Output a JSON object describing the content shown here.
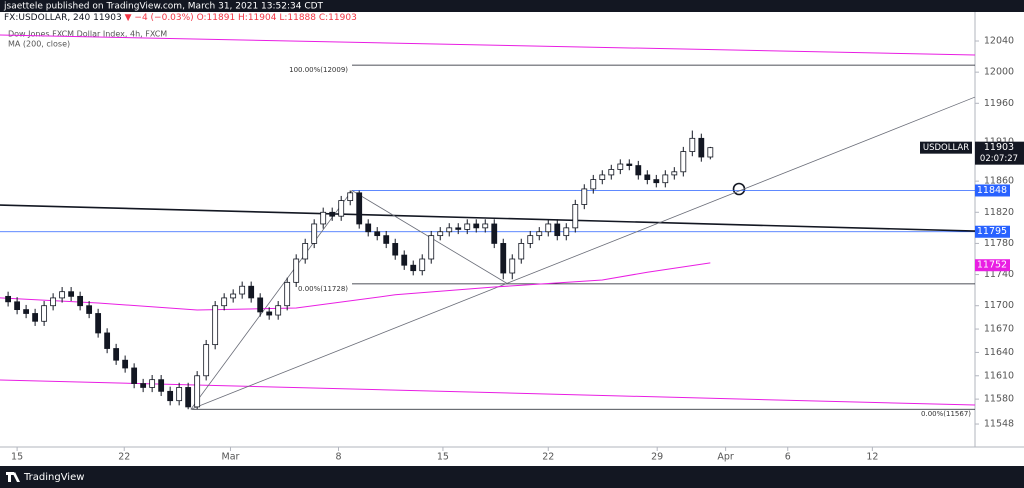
{
  "header": {
    "publisher": "jsaettele published on TradingView.com, March 31, 2021 13:52:34 CDT",
    "symbol": "FX:USDOLLAR, 240",
    "last": "11903",
    "change": "▼ −4 (−0.03%)",
    "ohlc": "O:11891 H:11904 L:11888 C:11903",
    "series_title": "Dow Jones FXCM Dollar Index, 4h, FXCM",
    "indicator": "MA (200, close)",
    "footer": "TradingView"
  },
  "chart_data": {
    "type": "candlestick",
    "up_color": "#ffffff",
    "down_color": "#131722",
    "open": [
      11712,
      11705,
      11695,
      11690,
      11680,
      11700,
      11710,
      11718,
      11712,
      11700,
      11690,
      11665,
      11645,
      11630,
      11620,
      11600,
      11595,
      11605,
      11590,
      11578,
      11595,
      11570,
      11610,
      11650,
      11700,
      11710,
      11715,
      11725,
      11710,
      11692,
      11688,
      11700,
      11730,
      11760,
      11780,
      11805,
      11820,
      11815,
      11835,
      11845,
      11805,
      11795,
      11790,
      11780,
      11765,
      11752,
      11745,
      11760,
      11790,
      11795,
      11800,
      11798,
      11805,
      11800,
      11805,
      11780,
      11742,
      11760,
      11780,
      11790,
      11795,
      11805,
      11790,
      11800,
      11830,
      11850,
      11862,
      11868,
      11875,
      11882,
      11880,
      11868,
      11862,
      11858,
      11868,
      11872,
      11898,
      11915,
      11891
    ],
    "high": [
      11718,
      11711,
      11701,
      11696,
      11706,
      11716,
      11724,
      11724,
      11718,
      11706,
      11696,
      11671,
      11651,
      11636,
      11626,
      11606,
      11611,
      11611,
      11596,
      11601,
      11601,
      11616,
      11656,
      11706,
      11716,
      11721,
      11731,
      11731,
      11716,
      11698,
      11706,
      11736,
      11766,
      11786,
      11811,
      11826,
      11826,
      11841,
      11848,
      11848,
      11811,
      11801,
      11796,
      11786,
      11771,
      11758,
      11766,
      11796,
      11801,
      11806,
      11806,
      11811,
      11811,
      11811,
      11811,
      11786,
      11766,
      11786,
      11796,
      11801,
      11811,
      11811,
      11806,
      11836,
      11856,
      11868,
      11874,
      11881,
      11888,
      11888,
      11886,
      11874,
      11868,
      11874,
      11878,
      11904,
      11925,
      11921,
      11904
    ],
    "low": [
      11699,
      11689,
      11684,
      11674,
      11674,
      11694,
      11704,
      11706,
      11694,
      11684,
      11659,
      11639,
      11624,
      11614,
      11594,
      11589,
      11589,
      11584,
      11572,
      11572,
      11567,
      11567,
      11604,
      11644,
      11694,
      11704,
      11709,
      11704,
      11686,
      11682,
      11682,
      11694,
      11724,
      11754,
      11774,
      11799,
      11809,
      11809,
      11829,
      11799,
      11789,
      11784,
      11774,
      11759,
      11746,
      11739,
      11739,
      11754,
      11784,
      11789,
      11792,
      11792,
      11794,
      11794,
      11774,
      11734,
      11734,
      11754,
      11774,
      11784,
      11789,
      11784,
      11784,
      11794,
      11824,
      11844,
      11856,
      11862,
      11869,
      11874,
      11862,
      11856,
      11852,
      11852,
      11862,
      11866,
      11892,
      11885,
      11888
    ],
    "close": [
      11705,
      11695,
      11690,
      11680,
      11700,
      11710,
      11718,
      11712,
      11700,
      11690,
      11665,
      11645,
      11630,
      11620,
      11600,
      11595,
      11605,
      11590,
      11578,
      11595,
      11570,
      11610,
      11650,
      11700,
      11710,
      11715,
      11725,
      11710,
      11692,
      11688,
      11700,
      11730,
      11760,
      11780,
      11805,
      11820,
      11815,
      11835,
      11845,
      11805,
      11795,
      11790,
      11780,
      11765,
      11752,
      11745,
      11760,
      11790,
      11795,
      11800,
      11798,
      11805,
      11800,
      11805,
      11780,
      11742,
      11760,
      11780,
      11790,
      11795,
      11805,
      11790,
      11800,
      11830,
      11850,
      11862,
      11868,
      11875,
      11882,
      11880,
      11868,
      11862,
      11858,
      11868,
      11872,
      11898,
      11915,
      11891,
      11903
    ],
    "xlim": [
      -0.9,
      107.4
    ],
    "xticks": [
      {
        "value": 1,
        "label": "15"
      },
      {
        "value": 12.9,
        "label": "22"
      },
      {
        "value": 24.7,
        "label": "Mar"
      },
      {
        "value": 36.7,
        "label": "8"
      },
      {
        "value": 48.3,
        "label": "15"
      },
      {
        "value": 60,
        "label": "22"
      },
      {
        "value": 72.1,
        "label": "29"
      },
      {
        "value": 79.7,
        "label": "Apr"
      },
      {
        "value": 86.6,
        "label": "6"
      },
      {
        "value": 96,
        "label": "12"
      }
    ],
    "ylim": [
      11518.5,
      12074.7
    ],
    "yticks": [
      12040,
      12000,
      11960,
      11910,
      11860,
      11820,
      11780,
      11740,
      11700,
      11670,
      11640,
      11610,
      11580,
      11548
    ],
    "ma": {
      "name": "MA (200, close)",
      "color": "#e91ee3",
      "x": [
        -0.9,
        10,
        21,
        32,
        43,
        54,
        66,
        71,
        78
      ],
      "values": [
        11710,
        11703.5,
        11694.5,
        11697,
        11714,
        11724,
        11733,
        11743,
        11755
      ]
    },
    "trendlines": [
      {
        "color": "#e91ee3",
        "width": 1,
        "x": [
          -0.9,
          107.4
        ],
        "values": [
          12047.7,
          12022
        ]
      },
      {
        "color": "#e91ee3",
        "width": 1,
        "x": [
          -0.9,
          107.4
        ],
        "values": [
          11604.6,
          11572.4
        ]
      },
      {
        "color": "#131722",
        "width": 1.6,
        "x": [
          -0.9,
          107.4
        ],
        "values": [
          11829.3,
          11795.9
        ]
      },
      {
        "color": "#6a6d78",
        "width": 0.8,
        "x": [
          20.3,
          107.4
        ],
        "values": [
          11567,
          11968
        ]
      },
      {
        "color": "#6a6d78",
        "width": 0.8,
        "x": [
          20.3,
          38.2,
          55.5
        ],
        "values": [
          11567,
          11848,
          11728
        ]
      }
    ],
    "fib_levels": [
      {
        "label": "100.00%(12009)",
        "value": 12009,
        "x": 38.2
      },
      {
        "label": "0.00%(11728)",
        "value": 11728,
        "x": 38.2
      },
      {
        "label": "0.00%(11567)",
        "value": 11567,
        "x": 20.3
      }
    ],
    "levels": [
      {
        "value": 11848,
        "color": "#2962ff",
        "x": 38.2
      },
      {
        "value": 11795,
        "color": "#2962ff",
        "x": -0.9
      }
    ],
    "ma_last": {
      "value": 11752,
      "color": "#e91ee3"
    },
    "price_label": {
      "name": "USDOLLAR",
      "value": 11903,
      "countdown": "02:07:27"
    }
  }
}
